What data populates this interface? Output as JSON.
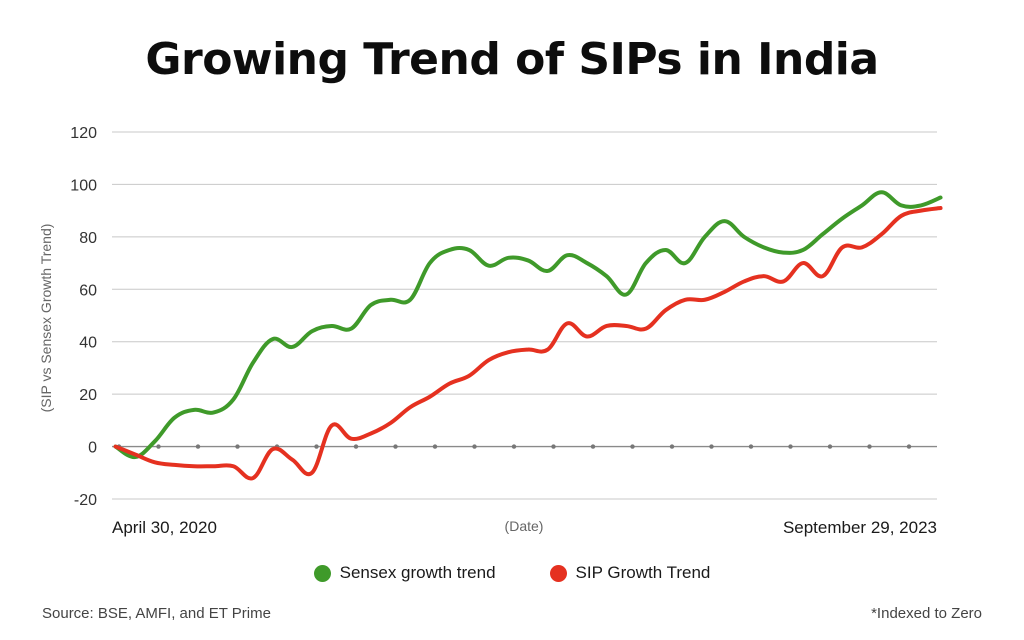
{
  "chart_data": {
    "type": "line",
    "title": "Growing Trend of SIPs in India",
    "ylabel": "(SIP vs Sensex Growth Trend)",
    "xlabel": "(Date)",
    "x_start_label": "April 30, 2020",
    "x_end_label": "September 29, 2023",
    "ylim": [
      -20,
      120
    ],
    "yticks": [
      -20,
      0,
      20,
      40,
      60,
      80,
      100,
      120
    ],
    "grid": true,
    "legend_position": "bottom",
    "x": [
      0,
      1,
      2,
      3,
      4,
      5,
      6,
      7,
      8,
      9,
      10,
      11,
      12,
      13,
      14,
      15,
      16,
      17,
      18,
      19,
      20,
      21,
      22,
      23,
      24,
      25,
      26,
      27,
      28,
      29,
      30,
      31,
      32,
      33,
      34,
      35,
      36,
      37,
      38,
      39,
      40,
      41,
      42
    ],
    "series": [
      {
        "name": "Sensex growth trend",
        "color": "#3f9a2a",
        "values": [
          0,
          -4,
          2,
          11,
          14,
          13,
          18,
          32,
          41,
          38,
          44,
          46,
          45,
          54,
          56,
          56,
          70,
          75,
          75,
          69,
          72,
          71,
          67,
          73,
          70,
          65,
          58,
          70,
          75,
          70,
          80,
          86,
          80,
          76,
          74,
          75,
          81,
          87,
          92,
          97,
          92,
          92,
          95
        ]
      },
      {
        "name": "SIP Growth Trend",
        "color": "#e53120",
        "values": [
          0,
          -3,
          -6,
          -7,
          -7.5,
          -7.5,
          -7.5,
          -12,
          -1,
          -5,
          -10,
          8,
          3,
          5,
          9,
          15,
          19,
          24,
          27,
          33,
          36,
          37,
          37,
          47,
          42,
          46,
          46,
          45,
          52,
          56,
          56,
          59,
          63,
          65,
          63,
          70,
          65,
          76,
          76,
          81,
          88,
          90,
          91
        ]
      }
    ],
    "annotations": {
      "source": "Source: BSE, AMFI, and ET Prime",
      "note": "*Indexed to Zero"
    }
  }
}
